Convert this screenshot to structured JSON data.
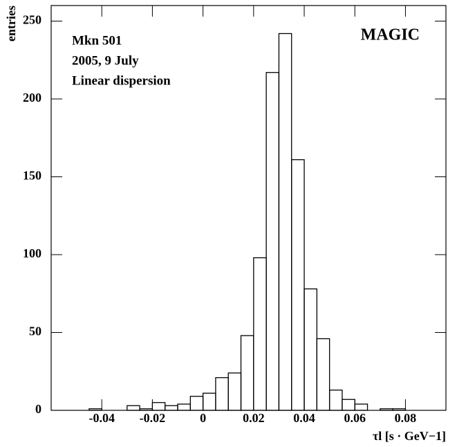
{
  "chart_data": {
    "type": "histogram",
    "ylabel": "entries",
    "xlabel": "τl [s · GeV−1]",
    "annotations": [
      "Mkn 501",
      "2005, 9 July",
      "Linear dispersion",
      "MAGIC"
    ],
    "bins": [
      -0.06,
      -0.055,
      -0.05,
      -0.045,
      -0.04,
      -0.035,
      -0.03,
      -0.025,
      -0.02,
      -0.015,
      -0.01,
      -0.005,
      0,
      0.005,
      0.01,
      0.015,
      0.02,
      0.025,
      0.03,
      0.035,
      0.04,
      0.045,
      0.05,
      0.055,
      0.06,
      0.065,
      0.07,
      0.075,
      0.08,
      0.085,
      0.09,
      0.095
    ],
    "values": [
      0,
      0,
      0,
      1,
      0,
      0,
      3,
      1,
      5,
      3,
      4,
      9,
      11,
      21,
      24,
      48,
      98,
      217,
      242,
      161,
      78,
      46,
      13,
      7,
      4,
      0,
      1,
      1,
      0,
      0,
      0
    ],
    "color": "#000000",
    "xlim": [
      -0.06,
      0.096
    ],
    "ylim": [
      0,
      260
    ],
    "xticks": [
      -0.04,
      -0.02,
      0,
      0.02,
      0.04,
      0.06,
      0.08
    ],
    "yticks": [
      0,
      50,
      100,
      150,
      200,
      250
    ]
  }
}
